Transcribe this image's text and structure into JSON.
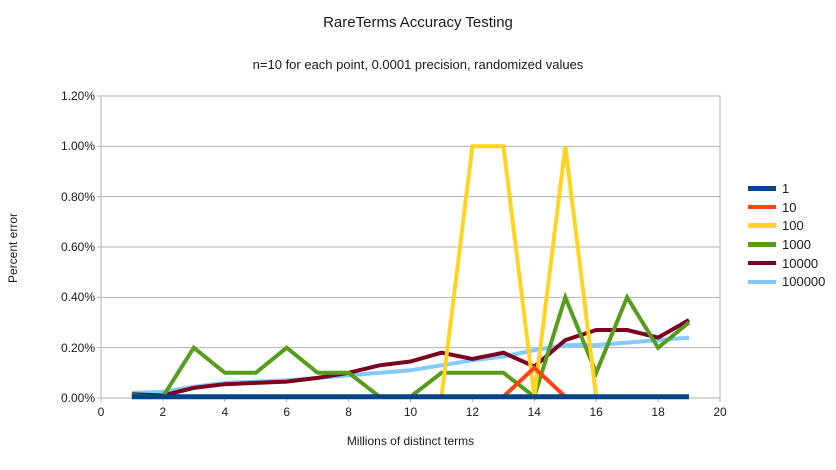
{
  "chart_data": {
    "type": "line",
    "title": "RareTerms Accuracy Testing",
    "subtitle": "n=10 for each point, 0.0001 precision, randomized values",
    "xlabel": "Millions of distinct terms",
    "ylabel": "Percent error",
    "xlim": [
      0,
      20
    ],
    "ylim": [
      0,
      1.2
    ],
    "grid": "horizontal",
    "legend_position": "right",
    "axis_color": "#b3b3b3",
    "text_color": "#1a1a1a",
    "y_ticks": [
      {
        "label": "0.00%",
        "value": 0.0
      },
      {
        "label": "0.20%",
        "value": 0.2
      },
      {
        "label": "0.40%",
        "value": 0.4
      },
      {
        "label": "0.60%",
        "value": 0.6
      },
      {
        "label": "0.80%",
        "value": 0.8
      },
      {
        "label": "1.00%",
        "value": 1.0
      },
      {
        "label": "1.20%",
        "value": 1.2
      }
    ],
    "x_ticks": [
      {
        "label": "0",
        "value": 0
      },
      {
        "label": "2",
        "value": 2
      },
      {
        "label": "4",
        "value": 4
      },
      {
        "label": "6",
        "value": 6
      },
      {
        "label": "8",
        "value": 8
      },
      {
        "label": "10",
        "value": 10
      },
      {
        "label": "12",
        "value": 12
      },
      {
        "label": "14",
        "value": 14
      },
      {
        "label": "16",
        "value": 16
      },
      {
        "label": "18",
        "value": 18
      },
      {
        "label": "20",
        "value": 20
      }
    ],
    "x": [
      1,
      2,
      3,
      4,
      5,
      6,
      7,
      8,
      9,
      10,
      11,
      12,
      13,
      14,
      15,
      16,
      17,
      18,
      19
    ],
    "series": [
      {
        "name": "1",
        "color": "#004586",
        "values": [
          0.005,
          0.005,
          0.005,
          0.005,
          0.005,
          0.005,
          0.005,
          0.005,
          0.005,
          0.005,
          0.005,
          0.005,
          0.005,
          0.005,
          0.005,
          0.005,
          0.005,
          0.005,
          0.005
        ]
      },
      {
        "name": "10",
        "color": "#ff420e",
        "values": [
          0.005,
          0.005,
          0.005,
          0.005,
          0.005,
          0.005,
          0.005,
          0.005,
          0.005,
          0.005,
          0.005,
          0.005,
          0.005,
          0.12,
          0.005,
          0.005,
          0.005,
          0.005,
          0.005
        ]
      },
      {
        "name": "100",
        "color": "#ffd320",
        "values": [
          0.005,
          0.005,
          0.005,
          0.005,
          0.005,
          0.005,
          0.005,
          0.005,
          0.005,
          0.005,
          0.005,
          1.0,
          1.0,
          0.005,
          1.0,
          0.005,
          0.005,
          0.005,
          0.005
        ]
      },
      {
        "name": "1000",
        "color": "#579d1c",
        "values": [
          0.01,
          0.005,
          0.2,
          0.1,
          0.1,
          0.2,
          0.1,
          0.1,
          0.005,
          0.005,
          0.1,
          0.1,
          0.1,
          0.005,
          0.4,
          0.1,
          0.4,
          0.2,
          0.3
        ]
      },
      {
        "name": "10000",
        "color": "#7e0021",
        "values": [
          0.015,
          0.01,
          0.04,
          0.055,
          0.06,
          0.065,
          0.08,
          0.1,
          0.13,
          0.145,
          0.18,
          0.155,
          0.18,
          0.125,
          0.23,
          0.27,
          0.27,
          0.24,
          0.31
        ]
      },
      {
        "name": "100000",
        "color": "#83caff",
        "values": [
          0.02,
          0.025,
          0.045,
          0.06,
          0.065,
          0.07,
          0.08,
          0.09,
          0.1,
          0.11,
          0.13,
          0.15,
          0.165,
          0.19,
          0.21,
          0.21,
          0.22,
          0.23,
          0.24
        ]
      }
    ]
  }
}
